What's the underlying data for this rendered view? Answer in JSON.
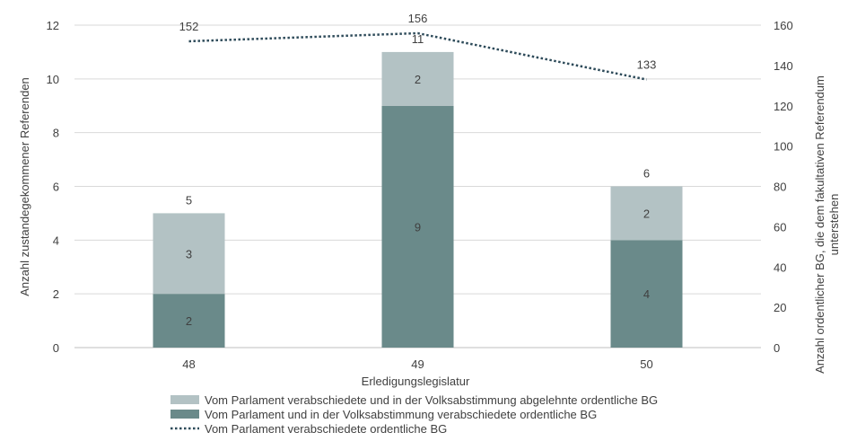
{
  "chart_data": {
    "type": "bar",
    "stacked": true,
    "categories": [
      "48",
      "49",
      "50"
    ],
    "series": [
      {
        "name": "Vom Parlament und in der Volksabstimmung verabschiedete ordentliche BG",
        "values": [
          2,
          9,
          4
        ],
        "color": "#6a8a8a",
        "axis": "left"
      },
      {
        "name": "Vom Parlament verabschiedete und in der Volksabstimmung abgelehnte ordentliche BG",
        "values": [
          3,
          2,
          2
        ],
        "color": "#b3c2c4",
        "axis": "left"
      }
    ],
    "totals": [
      5,
      11,
      6
    ],
    "line_series": {
      "name": "Vom Parlament verabschiedete ordentliche BG",
      "values": [
        152,
        156,
        133
      ],
      "color": "#2e4b5a",
      "style": "dotted",
      "axis": "right"
    },
    "xlabel": "Erledigungslegislatur",
    "ylabel": "Anzahl zustandegekommener Referenden",
    "y2label_line1": "Anzahl ordentlicher BG, die dem fakultativen Referendum",
    "y2label_line2": "unterstehen",
    "ylim": [
      0,
      12
    ],
    "yticks": [
      "0",
      "2",
      "4",
      "6",
      "8",
      "10",
      "12"
    ],
    "y2lim": [
      0,
      160
    ],
    "y2ticks": [
      "0",
      "20",
      "40",
      "60",
      "80",
      "100",
      "120",
      "140",
      "160"
    ],
    "grid": true,
    "legend_position": "bottom",
    "legend_order": [
      "Vom Parlament verabschiedete und in der Volksabstimmung abgelehnte ordentliche BG",
      "Vom Parlament und in der Volksabstimmung verabschiedete ordentliche BG",
      "Vom Parlament verabschiedete ordentliche BG"
    ]
  }
}
